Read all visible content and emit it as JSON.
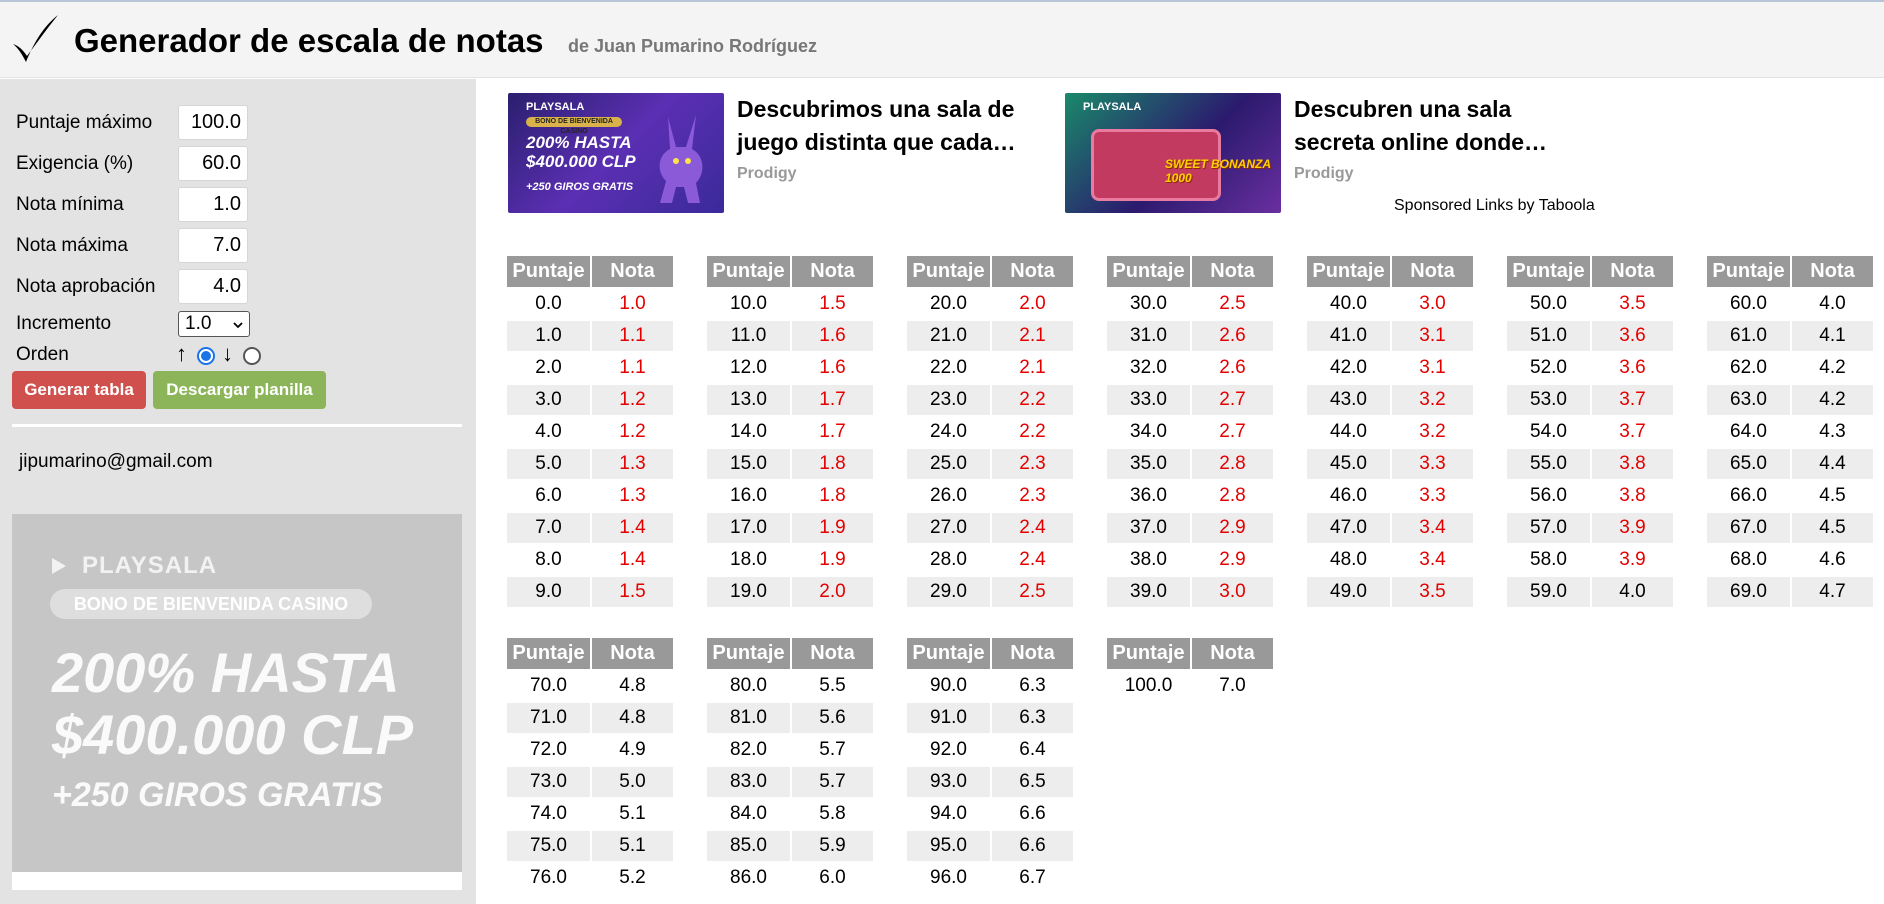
{
  "header": {
    "title": "Generador de escala de notas",
    "author": "de Juan Pumarino Rodríguez"
  },
  "form": {
    "fields": [
      {
        "label": "Puntaje máximo",
        "value": "100.0"
      },
      {
        "label": "Exigencia (%)",
        "value": "60.0"
      },
      {
        "label": "Nota mínima",
        "value": "1.0"
      },
      {
        "label": "Nota máxima",
        "value": "7.0"
      },
      {
        "label": "Nota aprobación",
        "value": "4.0"
      }
    ],
    "increment_label": "Incremento",
    "increment_value": "1.0",
    "order_label": "Orden",
    "order_up": "↑",
    "order_down": "↓",
    "order_selected": "up",
    "generate_label": "Generar tabla",
    "download_label": "Descargar planilla",
    "email": "jipumarino@gmail.com"
  },
  "side_ad": {
    "brand": "PLAYSALA",
    "bono": "BONO DE BIENVENIDA CASINO",
    "line1": "200% HASTA",
    "line2": "$400.000 CLP",
    "line3": "+250 GIROS GRATIS"
  },
  "ads": [
    {
      "title": "Descubrimos una sala de juego distinta que cada…",
      "source": "Prodigy",
      "brand": "PLAYSALA",
      "bono": "BONO DE BIENVENIDA CASINO",
      "big1": "200% HASTA",
      "big2": "$400.000 CLP",
      "giros": "+250 GIROS GRATIS"
    },
    {
      "title": "Descubren una sala secreta online donde…",
      "source": "Prodigy",
      "brand": "PLAYSALA",
      "slot": "SWEET BONANZA 1000"
    }
  ],
  "sponsored": "Sponsored Links by Taboola",
  "table_headers": {
    "score": "Puntaje",
    "grade": "Nota"
  },
  "grade_tables": [
    {
      "rows": [
        [
          "0.0",
          "1.0"
        ],
        [
          "1.0",
          "1.1"
        ],
        [
          "2.0",
          "1.1"
        ],
        [
          "3.0",
          "1.2"
        ],
        [
          "4.0",
          "1.2"
        ],
        [
          "5.0",
          "1.3"
        ],
        [
          "6.0",
          "1.3"
        ],
        [
          "7.0",
          "1.4"
        ],
        [
          "8.0",
          "1.4"
        ],
        [
          "9.0",
          "1.5"
        ]
      ]
    },
    {
      "rows": [
        [
          "10.0",
          "1.5"
        ],
        [
          "11.0",
          "1.6"
        ],
        [
          "12.0",
          "1.6"
        ],
        [
          "13.0",
          "1.7"
        ],
        [
          "14.0",
          "1.7"
        ],
        [
          "15.0",
          "1.8"
        ],
        [
          "16.0",
          "1.8"
        ],
        [
          "17.0",
          "1.9"
        ],
        [
          "18.0",
          "1.9"
        ],
        [
          "19.0",
          "2.0"
        ]
      ]
    },
    {
      "rows": [
        [
          "20.0",
          "2.0"
        ],
        [
          "21.0",
          "2.1"
        ],
        [
          "22.0",
          "2.1"
        ],
        [
          "23.0",
          "2.2"
        ],
        [
          "24.0",
          "2.2"
        ],
        [
          "25.0",
          "2.3"
        ],
        [
          "26.0",
          "2.3"
        ],
        [
          "27.0",
          "2.4"
        ],
        [
          "28.0",
          "2.4"
        ],
        [
          "29.0",
          "2.5"
        ]
      ]
    },
    {
      "rows": [
        [
          "30.0",
          "2.5"
        ],
        [
          "31.0",
          "2.6"
        ],
        [
          "32.0",
          "2.6"
        ],
        [
          "33.0",
          "2.7"
        ],
        [
          "34.0",
          "2.7"
        ],
        [
          "35.0",
          "2.8"
        ],
        [
          "36.0",
          "2.8"
        ],
        [
          "37.0",
          "2.9"
        ],
        [
          "38.0",
          "2.9"
        ],
        [
          "39.0",
          "3.0"
        ]
      ]
    },
    {
      "rows": [
        [
          "40.0",
          "3.0"
        ],
        [
          "41.0",
          "3.1"
        ],
        [
          "42.0",
          "3.1"
        ],
        [
          "43.0",
          "3.2"
        ],
        [
          "44.0",
          "3.2"
        ],
        [
          "45.0",
          "3.3"
        ],
        [
          "46.0",
          "3.3"
        ],
        [
          "47.0",
          "3.4"
        ],
        [
          "48.0",
          "3.4"
        ],
        [
          "49.0",
          "3.5"
        ]
      ]
    },
    {
      "rows": [
        [
          "50.0",
          "3.5"
        ],
        [
          "51.0",
          "3.6"
        ],
        [
          "52.0",
          "3.6"
        ],
        [
          "53.0",
          "3.7"
        ],
        [
          "54.0",
          "3.7"
        ],
        [
          "55.0",
          "3.8"
        ],
        [
          "56.0",
          "3.8"
        ],
        [
          "57.0",
          "3.9"
        ],
        [
          "58.0",
          "3.9"
        ],
        [
          "59.0",
          "4.0"
        ]
      ]
    },
    {
      "rows": [
        [
          "60.0",
          "4.0"
        ],
        [
          "61.0",
          "4.1"
        ],
        [
          "62.0",
          "4.2"
        ],
        [
          "63.0",
          "4.2"
        ],
        [
          "64.0",
          "4.3"
        ],
        [
          "65.0",
          "4.4"
        ],
        [
          "66.0",
          "4.5"
        ],
        [
          "67.0",
          "4.5"
        ],
        [
          "68.0",
          "4.6"
        ],
        [
          "69.0",
          "4.7"
        ]
      ]
    },
    {
      "rows": [
        [
          "70.0",
          "4.8"
        ],
        [
          "71.0",
          "4.8"
        ],
        [
          "72.0",
          "4.9"
        ],
        [
          "73.0",
          "5.0"
        ],
        [
          "74.0",
          "5.1"
        ],
        [
          "75.0",
          "5.1"
        ],
        [
          "76.0",
          "5.2"
        ]
      ]
    },
    {
      "rows": [
        [
          "80.0",
          "5.5"
        ],
        [
          "81.0",
          "5.6"
        ],
        [
          "82.0",
          "5.7"
        ],
        [
          "83.0",
          "5.7"
        ],
        [
          "84.0",
          "5.8"
        ],
        [
          "85.0",
          "5.9"
        ],
        [
          "86.0",
          "6.0"
        ]
      ]
    },
    {
      "rows": [
        [
          "90.0",
          "6.3"
        ],
        [
          "91.0",
          "6.3"
        ],
        [
          "92.0",
          "6.4"
        ],
        [
          "93.0",
          "6.5"
        ],
        [
          "94.0",
          "6.6"
        ],
        [
          "95.0",
          "6.6"
        ],
        [
          "96.0",
          "6.7"
        ]
      ]
    },
    {
      "rows": [
        [
          "100.0",
          "7.0"
        ]
      ]
    }
  ],
  "colors": {
    "failing_grade": "#e50000",
    "header_bg": "#999999",
    "generate_button": "#d0504e",
    "download_button": "#8cb55a"
  }
}
